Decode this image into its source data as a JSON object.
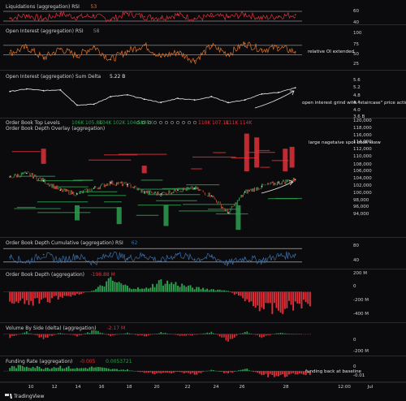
{
  "brand": {
    "label": "TradingView",
    "icon": "tradingview-logo-icon"
  },
  "colors": {
    "background": "#0b0b0d",
    "separator": "#2a2a2e",
    "red": "#e0313a",
    "green": "#2e9e4f",
    "orange": "#e2742a",
    "white": "#e8e8e8",
    "blue": "#3a6ea8",
    "price_up": "#33a05a",
    "price_down": "#b7432e"
  },
  "x_axis": {
    "ticks": [
      "10",
      "12",
      "14",
      "16",
      "18",
      "20",
      "22",
      "24",
      "26",
      "28",
      "12:00",
      "Jul"
    ]
  },
  "panels": [
    {
      "id": "liquidations-rsi",
      "title": "Liquidations (aggregation) RSI",
      "value": "53",
      "value_color": "#e2742a",
      "axis_labels": [
        "60",
        "40"
      ]
    },
    {
      "id": "open-interest-rsi",
      "title": "Open Interest (aggregation) RSI",
      "value": "58",
      "value_color": "#e2742a",
      "axis_labels": [
        "100",
        "75",
        "50",
        "25"
      ],
      "annotation": "relative OI extended"
    },
    {
      "id": "oi-sum-delta",
      "title": "Open Interest (aggregation) Sum Delta",
      "value": "5.22 B",
      "value_color": "#e8e8e8",
      "axis_labels": [
        "5.6",
        "5.2",
        "4.8",
        "4.4",
        "4.0",
        "3.6 B"
      ],
      "annotation": "open interest grind with \"staircase\" price action"
    },
    {
      "id": "order-book-levels",
      "title_top_levels": "Order Book Top Levels",
      "top_levels": [
        "106K",
        "105.8K",
        "104K",
        "102K",
        "104.5K",
        "105K"
      ],
      "top_levels_right": [
        "110K",
        "107.1K",
        "111K",
        "114K"
      ],
      "title": "Order Book Depth Overlay (aggregation)",
      "axis_labels": [
        "120,000",
        "118,000",
        "116,000",
        "114,000",
        "112,000",
        "110,000",
        "108,000",
        "106,000",
        "104,000",
        "102,000",
        "100,000",
        "98,000",
        "96,000",
        "94,000"
      ],
      "annotation": "large nagetaive spot book skew"
    },
    {
      "id": "ob-depth-cumulative-rsi",
      "title": "Order Book Depth Cumulative (aggregation) RSI",
      "value": "62",
      "value_color": "#3a6ea8",
      "axis_labels": [
        "80",
        "40"
      ]
    },
    {
      "id": "ob-depth",
      "title": "Order Book Depth (aggregation)",
      "value": "-198.88 M",
      "value_color": "#e0313a",
      "axis_labels": [
        "200 M",
        "0",
        "-200 M",
        "-400 M"
      ]
    },
    {
      "id": "volume-by-side",
      "title": "Volume By Side (delta) (aggregation)",
      "value": "-2.17 M",
      "value_color": "#e0313a",
      "axis_labels": [
        "0",
        "-200 M"
      ]
    },
    {
      "id": "funding-rate",
      "title": "Funding Rate (aggregation)",
      "value": "-0.005",
      "value2": "0.0053721",
      "value_color": "#e0313a",
      "value2_color": "#2e9e4f",
      "axis_labels": [
        "0",
        "-0.01"
      ],
      "annotation": "funding back at baseline"
    }
  ],
  "chart_data": [
    {
      "type": "line",
      "title": "Liquidations (aggregation) RSI",
      "x": [
        10,
        11,
        12,
        13,
        14,
        15,
        16,
        17,
        18,
        19,
        20,
        21,
        22,
        23,
        24,
        25,
        26,
        27
      ],
      "series": [
        {
          "values": [
            46,
            52,
            44,
            55,
            48,
            51,
            43,
            56,
            49,
            47,
            53,
            45,
            50,
            48,
            54,
            46,
            50,
            53
          ]
        }
      ],
      "ylim": [
        35,
        65
      ],
      "hlines": [
        60,
        40
      ]
    },
    {
      "type": "line",
      "title": "Open Interest (aggregation) RSI",
      "x": [
        10,
        11,
        12,
        13,
        14,
        15,
        16,
        17,
        18,
        19,
        20,
        21,
        22,
        23,
        24,
        25,
        26,
        27
      ],
      "series": [
        {
          "values": [
            55,
            70,
            42,
            66,
            48,
            72,
            38,
            60,
            76,
            45,
            58,
            35,
            74,
            52,
            80,
            64,
            70,
            58
          ]
        }
      ],
      "ylim": [
        20,
        100
      ],
      "hlines": [
        75,
        50
      ]
    },
    {
      "type": "line",
      "title": "Open Interest (aggregation) Sum Delta",
      "x": [
        10,
        11,
        12,
        13,
        14,
        15,
        16,
        17,
        18,
        19,
        20,
        21,
        22,
        23,
        24,
        25,
        26,
        27
      ],
      "series": [
        {
          "values": [
            5.0,
            5.15,
            5.05,
            5.1,
            4.2,
            4.25,
            4.7,
            4.8,
            4.55,
            4.35,
            4.6,
            4.5,
            4.7,
            4.35,
            4.5,
            4.85,
            4.95,
            5.22
          ]
        }
      ],
      "ylim": [
        3.6,
        5.8
      ]
    },
    {
      "type": "line",
      "title": "Order Book Depth Overlay (aggregation)",
      "x": [
        10,
        11,
        12,
        13,
        14,
        15,
        16,
        17,
        18,
        19,
        20,
        21,
        22,
        23,
        24,
        25,
        26,
        27
      ],
      "series": [
        {
          "values": [
            108500,
            109500,
            107500,
            105000,
            104000,
            105500,
            107000,
            106500,
            104500,
            104000,
            105000,
            105500,
            103500,
            99000,
            104500,
            106000,
            107000,
            107800
          ]
        }
      ],
      "ylim": [
        93000,
        121000
      ]
    },
    {
      "type": "line",
      "title": "Order Book Depth Cumulative (aggregation) RSI",
      "x": [
        10,
        11,
        12,
        13,
        14,
        15,
        16,
        17,
        18,
        19,
        20,
        21,
        22,
        23,
        24,
        25,
        26,
        27
      ],
      "series": [
        {
          "values": [
            55,
            40,
            62,
            45,
            58,
            38,
            66,
            50,
            60,
            42,
            64,
            48,
            56,
            36,
            52,
            44,
            58,
            62
          ]
        }
      ],
      "ylim": [
        25,
        90
      ],
      "hlines": [
        80,
        40
      ]
    },
    {
      "type": "bar",
      "title": "Order Book Depth (aggregation)",
      "x": [
        10,
        11,
        12,
        13,
        14,
        15,
        16,
        17,
        18,
        19,
        20,
        21,
        22,
        23,
        24,
        25,
        26,
        27
      ],
      "values": [
        -190,
        -170,
        -150,
        -80,
        -40,
        20,
        180,
        80,
        40,
        160,
        120,
        60,
        40,
        20,
        -120,
        -250,
        -290,
        -199
      ],
      "ylim": [
        -420,
        230
      ]
    },
    {
      "type": "bar",
      "title": "Volume By Side (delta) (aggregation)",
      "x": [
        10,
        11,
        12,
        13,
        14,
        15,
        16,
        17,
        18,
        19,
        20,
        21,
        22,
        23,
        24,
        25,
        26,
        27
      ],
      "values": [
        -40,
        30,
        -60,
        20,
        -30,
        50,
        -25,
        15,
        -35,
        25,
        -20,
        -15,
        30,
        -80,
        40,
        -45,
        20,
        -2
      ],
      "ylim": [
        -260,
        60
      ]
    },
    {
      "type": "bar",
      "title": "Funding Rate (aggregation)",
      "x": [
        10,
        11,
        12,
        13,
        14,
        15,
        16,
        17,
        18,
        19,
        20,
        21,
        22,
        23,
        24,
        25,
        26,
        27
      ],
      "values": [
        0.006,
        0.008,
        0.005,
        0.007,
        0.004,
        0.006,
        0.003,
        0.002,
        -0.003,
        -0.004,
        -0.002,
        -0.005,
        0.002,
        -0.004,
        0.004,
        -0.006,
        -0.009,
        -0.005
      ],
      "ylim": [
        -0.013,
        0.012
      ]
    }
  ]
}
